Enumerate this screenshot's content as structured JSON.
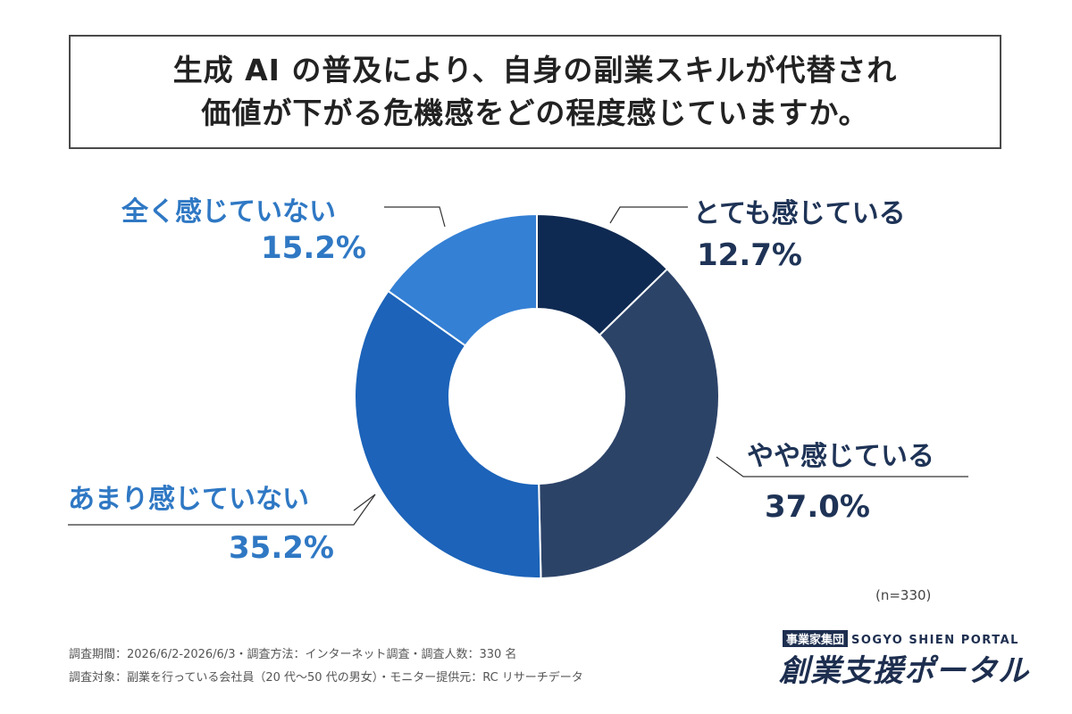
{
  "title": {
    "line1": "生成 AI の普及により、自身の副業スキルが代替され",
    "line2": "価値が下がる危機感をどの程度感じていますか。"
  },
  "chart_data": {
    "type": "pie",
    "variant": "donut",
    "categories": [
      "とても感じている",
      "やや感じている",
      "あまり感じていない",
      "全く感じていない"
    ],
    "values": [
      12.7,
      37.0,
      35.2,
      15.2
    ],
    "value_labels": [
      "12.7%",
      "37.0%",
      "35.2%",
      "15.2%"
    ],
    "colors": [
      "#0f2a52",
      "#2c4368",
      "#1c63b9",
      "#3480d5"
    ],
    "start_angle_deg": 0,
    "direction": "clockwise"
  },
  "sample_note": "(n=330)",
  "footer": {
    "line1": "調査期間：2026/6/2-2026/6/3・調査方法：インターネット調査・調査人数：330 名",
    "line2": "調査対象：副業を行っている会社員（20 代〜50 代の男女）・モニター提供元：RC リサーチデータ"
  },
  "brand": {
    "tag": "事業家集団",
    "sub": "SOGYO SHIEN PORTAL",
    "name": "創業支援ポータル"
  }
}
